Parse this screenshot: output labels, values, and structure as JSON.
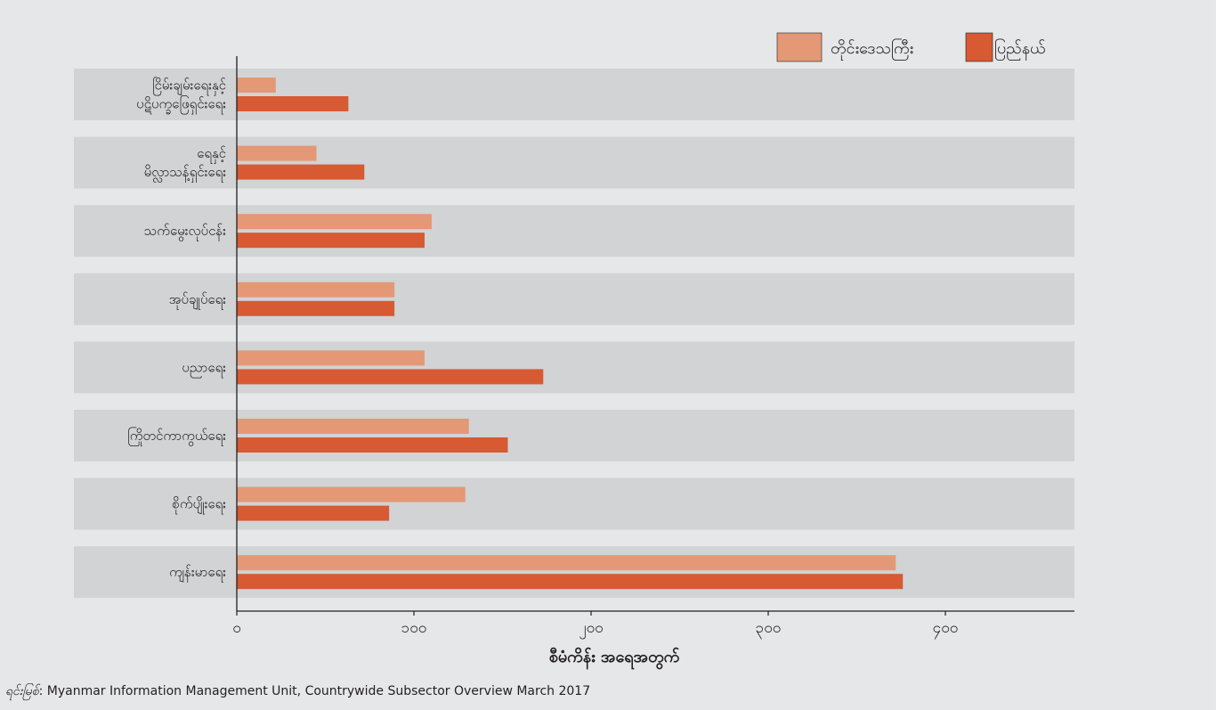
{
  "colors": {
    "background": "#e6e7e8",
    "band": "#d1d3d4",
    "series_light": "#e49876",
    "series_dark": "#d75a33",
    "axis": "#231f20"
  },
  "legend": {
    "position": "top-right",
    "items": [
      "တိုင်းဒေသကြီး",
      "ပြည်နယ်"
    ]
  },
  "chart_data": {
    "type": "bar",
    "orientation": "horizontal",
    "categories": [
      "ငြိမ်းချမ်းရေးနှင့် ပဋိပက္ခဖြေရှင်းရေး",
      "ရေနှင့် မိလ္လာသန့်ရှင်းရေး",
      "သက်မွေးလုပ်ငန်း",
      "အုပ်ချုပ်ရေး",
      "ပညာရေး",
      "ကြိုတင်ကာကွယ်ရေး",
      "စိုက်ပျိုးရေး",
      "ကျန်းမာရေး"
    ],
    "category_lines": [
      [
        "ငြိမ်းချမ်းရေးနှင့်",
        "ပဋိပက္ခဖြေရှင်းရေး"
      ],
      [
        "ရေနှင့်",
        "မိလ္လာသန့်ရှင်းရေး"
      ],
      [
        "သက်မွေးလုပ်ငန်း"
      ],
      [
        "အုပ်ချုပ်ရေး"
      ],
      [
        "ပညာရေး"
      ],
      [
        "ကြိုတင်ကာကွယ်ရေး"
      ],
      [
        "စိုက်ပျိုးရေး"
      ],
      [
        "ကျန်းမာရေး"
      ]
    ],
    "series": [
      {
        "name": "တိုင်းဒေသကြီး",
        "values": [
          22,
          45,
          110,
          89,
          106,
          131,
          129,
          372
        ]
      },
      {
        "name": "ပြည်နယ်",
        "values": [
          63,
          72,
          106,
          89,
          173,
          153,
          86,
          376
        ]
      }
    ],
    "xlim": [
      0,
      440
    ],
    "xticks": [
      0,
      100,
      200,
      300,
      400
    ],
    "xtick_labels": [
      "၀",
      "၁၀၀",
      "၂၀၀",
      "၃၀၀",
      "၄၀၀"
    ],
    "xlabel": "စီမံကိန်း အရေအတွက်",
    "ylabel": "",
    "grid": false
  },
  "source": {
    "label": "ရင်းမြစ်",
    "text": ": Myanmar Information Management Unit, Countrywide Subsector Overview March 2017"
  }
}
